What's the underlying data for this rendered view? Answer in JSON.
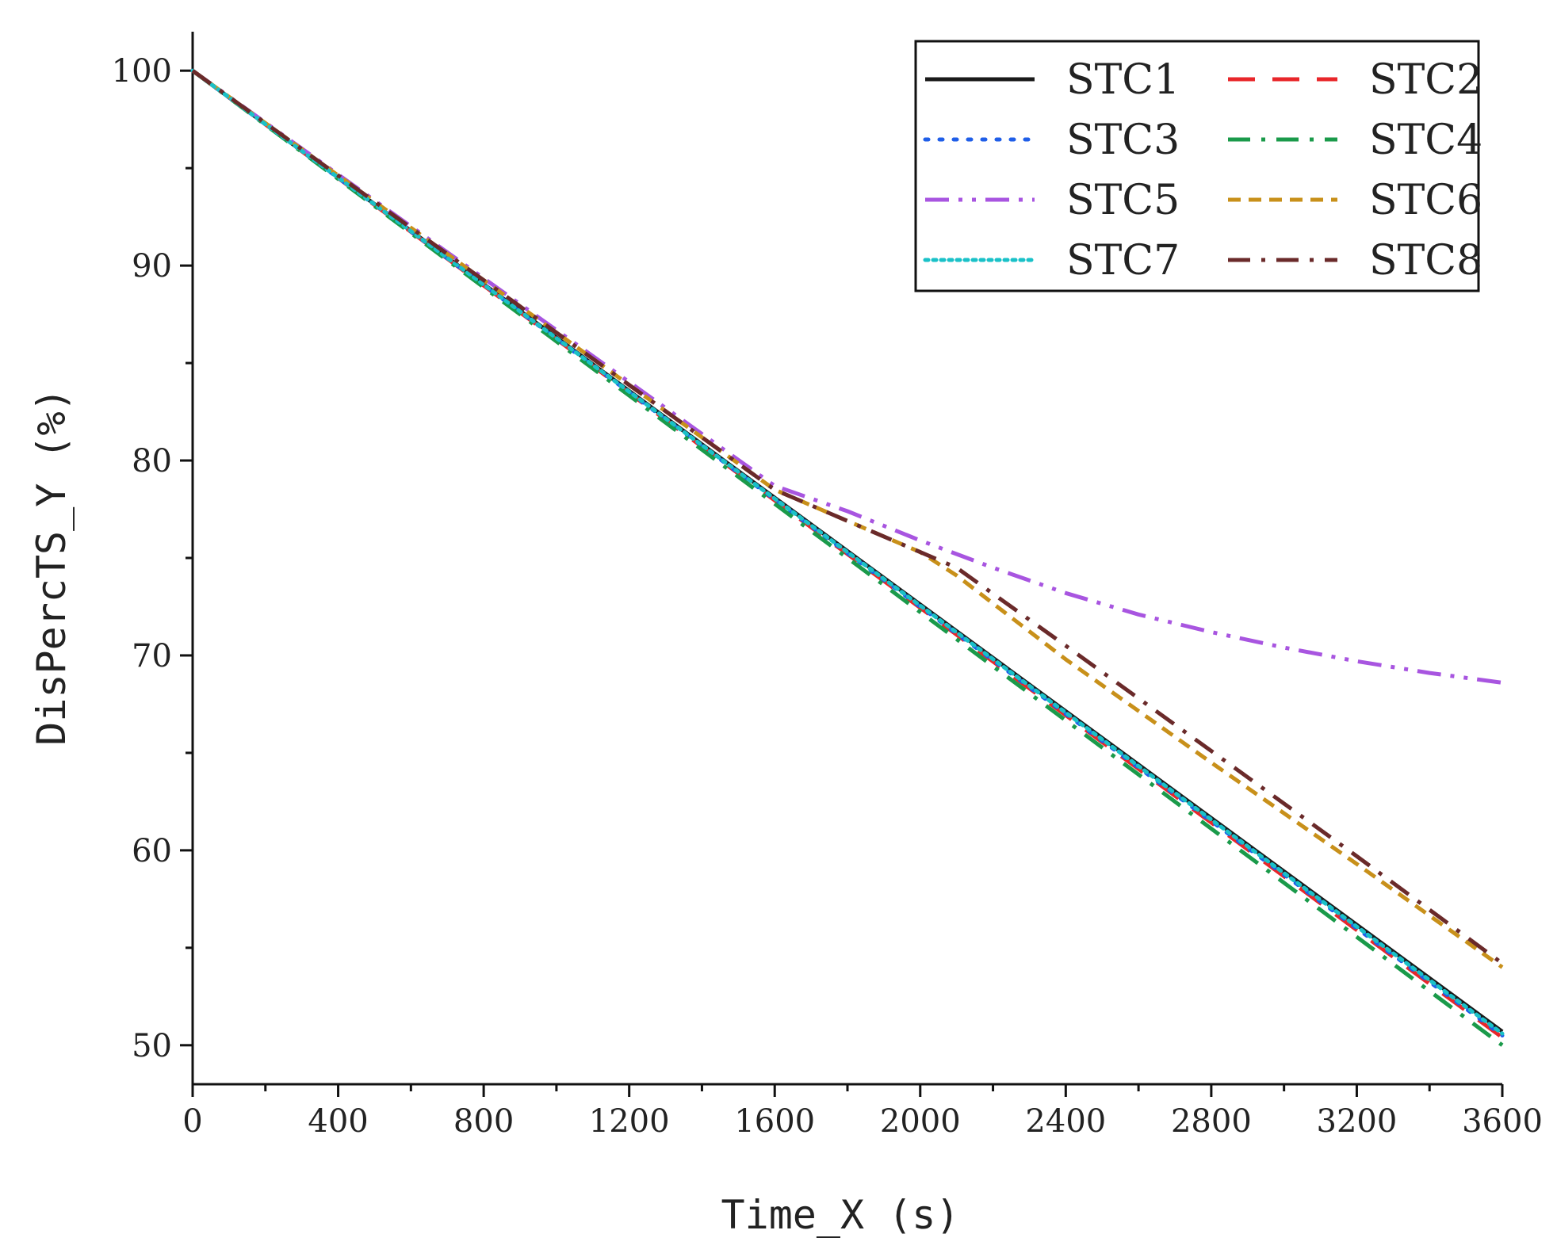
{
  "chart_data": {
    "type": "line",
    "title": "",
    "xlabel": "Time_X (s)",
    "ylabel": "DisPercTS_Y (%)",
    "xlim": [
      0,
      3600
    ],
    "ylim": [
      48,
      102
    ],
    "xticks": [
      0,
      400,
      800,
      1200,
      1600,
      2000,
      2400,
      2800,
      3200,
      3600
    ],
    "yticks": [
      50,
      60,
      70,
      80,
      90,
      100
    ],
    "x_minor_step": 200,
    "y_minor_step": 5,
    "grid": false,
    "legend_position": "top-right",
    "legend_columns": 2,
    "series": [
      {
        "name": "STC1",
        "color": "#1a1a1a",
        "dash": "solid",
        "x": [
          0,
          3600
        ],
        "y": [
          100,
          50.7
        ]
      },
      {
        "name": "STC2",
        "color": "#e8262a",
        "dash": "dash",
        "x": [
          0,
          3600
        ],
        "y": [
          100,
          50.4
        ]
      },
      {
        "name": "STC3",
        "color": "#1f5ee8",
        "dash": "dot",
        "x": [
          0,
          3600
        ],
        "y": [
          100,
          50.5
        ]
      },
      {
        "name": "STC4",
        "color": "#1a9a4a",
        "dash": "dashdot",
        "x": [
          0,
          3600
        ],
        "y": [
          100,
          50.0
        ]
      },
      {
        "name": "STC5",
        "color": "#a855e0",
        "dash": "dashdotdot",
        "x": [
          0,
          1600,
          1800,
          2000,
          2200,
          2400,
          2600,
          2800,
          3000,
          3200,
          3400,
          3600
        ],
        "y": [
          100,
          78.7,
          77.4,
          75.9,
          74.5,
          73.2,
          72.1,
          71.2,
          70.4,
          69.7,
          69.1,
          68.6
        ]
      },
      {
        "name": "STC6",
        "color": "#c8901a",
        "dash": "shortdash",
        "x": [
          0,
          1600,
          1800,
          2000,
          2100,
          2400,
          2800,
          3200,
          3600
        ],
        "y": [
          100,
          78.5,
          76.9,
          75.3,
          74.1,
          69.8,
          64.5,
          59.3,
          54.0
        ]
      },
      {
        "name": "STC7",
        "color": "#1ac1c8",
        "dash": "shortdot",
        "x": [
          0,
          3600
        ],
        "y": [
          100,
          50.6
        ]
      },
      {
        "name": "STC8",
        "color": "#6a2a2a",
        "dash": "dashdot",
        "x": [
          0,
          1600,
          1800,
          2000,
          2100,
          2400,
          2800,
          3200,
          3600
        ],
        "y": [
          100,
          78.5,
          76.9,
          75.3,
          74.5,
          70.5,
          65.1,
          59.7,
          54.2
        ]
      }
    ]
  }
}
